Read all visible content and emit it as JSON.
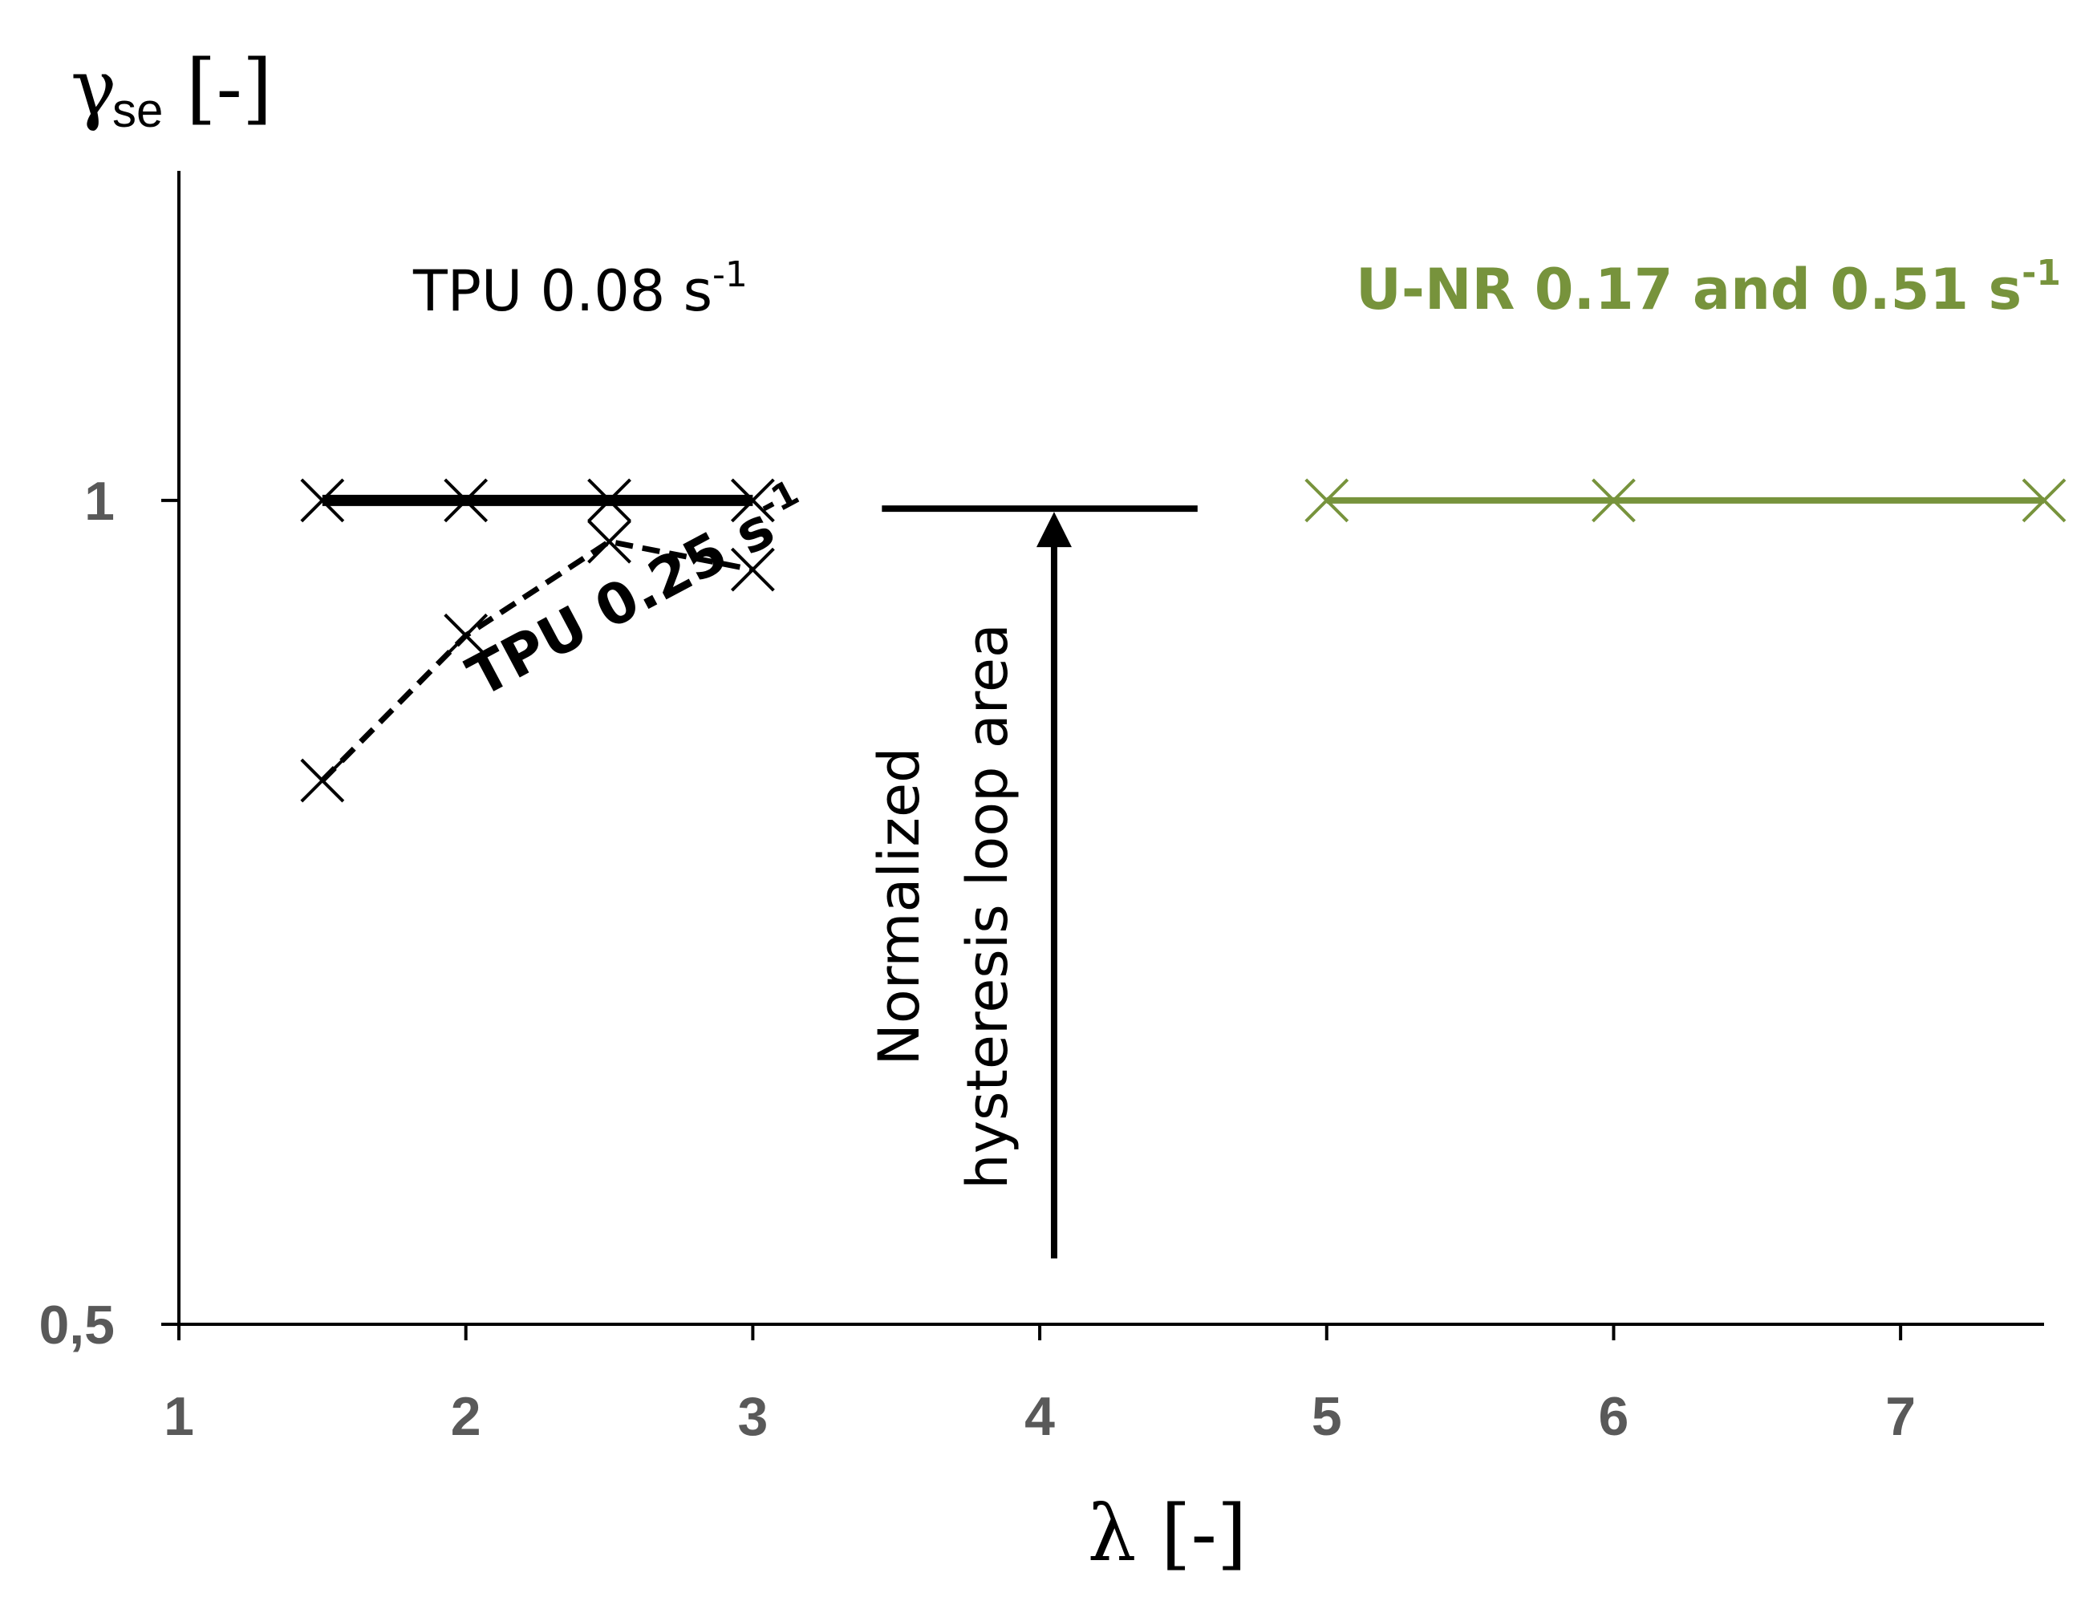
{
  "chart_data": {
    "type": "line",
    "title": "",
    "xlabel": "λ [-]",
    "ylabel": {
      "symbol": "γ",
      "subscript": "se",
      "unit": "[-]"
    },
    "xlim": [
      1,
      7.5
    ],
    "ylim": [
      0.5,
      1.2
    ],
    "x_ticks": [
      {
        "value": 1,
        "label": "1"
      },
      {
        "value": 2,
        "label": "2"
      },
      {
        "value": 3,
        "label": "3"
      },
      {
        "value": 4,
        "label": "4"
      },
      {
        "value": 5,
        "label": "5"
      },
      {
        "value": 6,
        "label": "6"
      },
      {
        "value": 7,
        "label": "7"
      }
    ],
    "y_ticks": [
      {
        "value": 1,
        "label": "1"
      },
      {
        "value": 0.5,
        "label": "0,5"
      }
    ],
    "grid": false,
    "series": [
      {
        "name": "TPU 0.08 s-1",
        "color": "#000000",
        "style": "solid-thick",
        "marker": "x",
        "x": [
          1.5,
          2,
          2.5,
          3
        ],
        "y": [
          1.0,
          1.0,
          1.0,
          1.0
        ]
      },
      {
        "name": "TPU 0.25 s-1",
        "color": "#000000",
        "style": "dashed",
        "marker": "x",
        "x": [
          1.5,
          2,
          2.5,
          3
        ],
        "y": [
          0.83,
          0.918,
          0.975,
          0.958
        ]
      },
      {
        "name": "U-NR 0.17 and 0.51 s-1",
        "color": "#77933C",
        "style": "solid",
        "marker": "x",
        "x": [
          5,
          6,
          7.5
        ],
        "y": [
          1.0,
          1.0,
          1.0
        ]
      }
    ],
    "annotations": {
      "tpu008": {
        "main": "TPU 0.08 s",
        "sup": "-1",
        "color": "#000000"
      },
      "tpu025": {
        "main": "TPU 0.25 s",
        "sup": "-1",
        "color": "#000000"
      },
      "unr": {
        "main": "U-NR 0.17 and 0.51 s",
        "sup": "-1",
        "color": "#77933C"
      },
      "arrow_label_line1": "Normalized",
      "arrow_label_line2": "hysteresis loop area",
      "arrow": {
        "x": 4.05,
        "y_from": 0.54,
        "y_to": 0.995,
        "bar_x": [
          3.45,
          4.55
        ]
      }
    }
  }
}
